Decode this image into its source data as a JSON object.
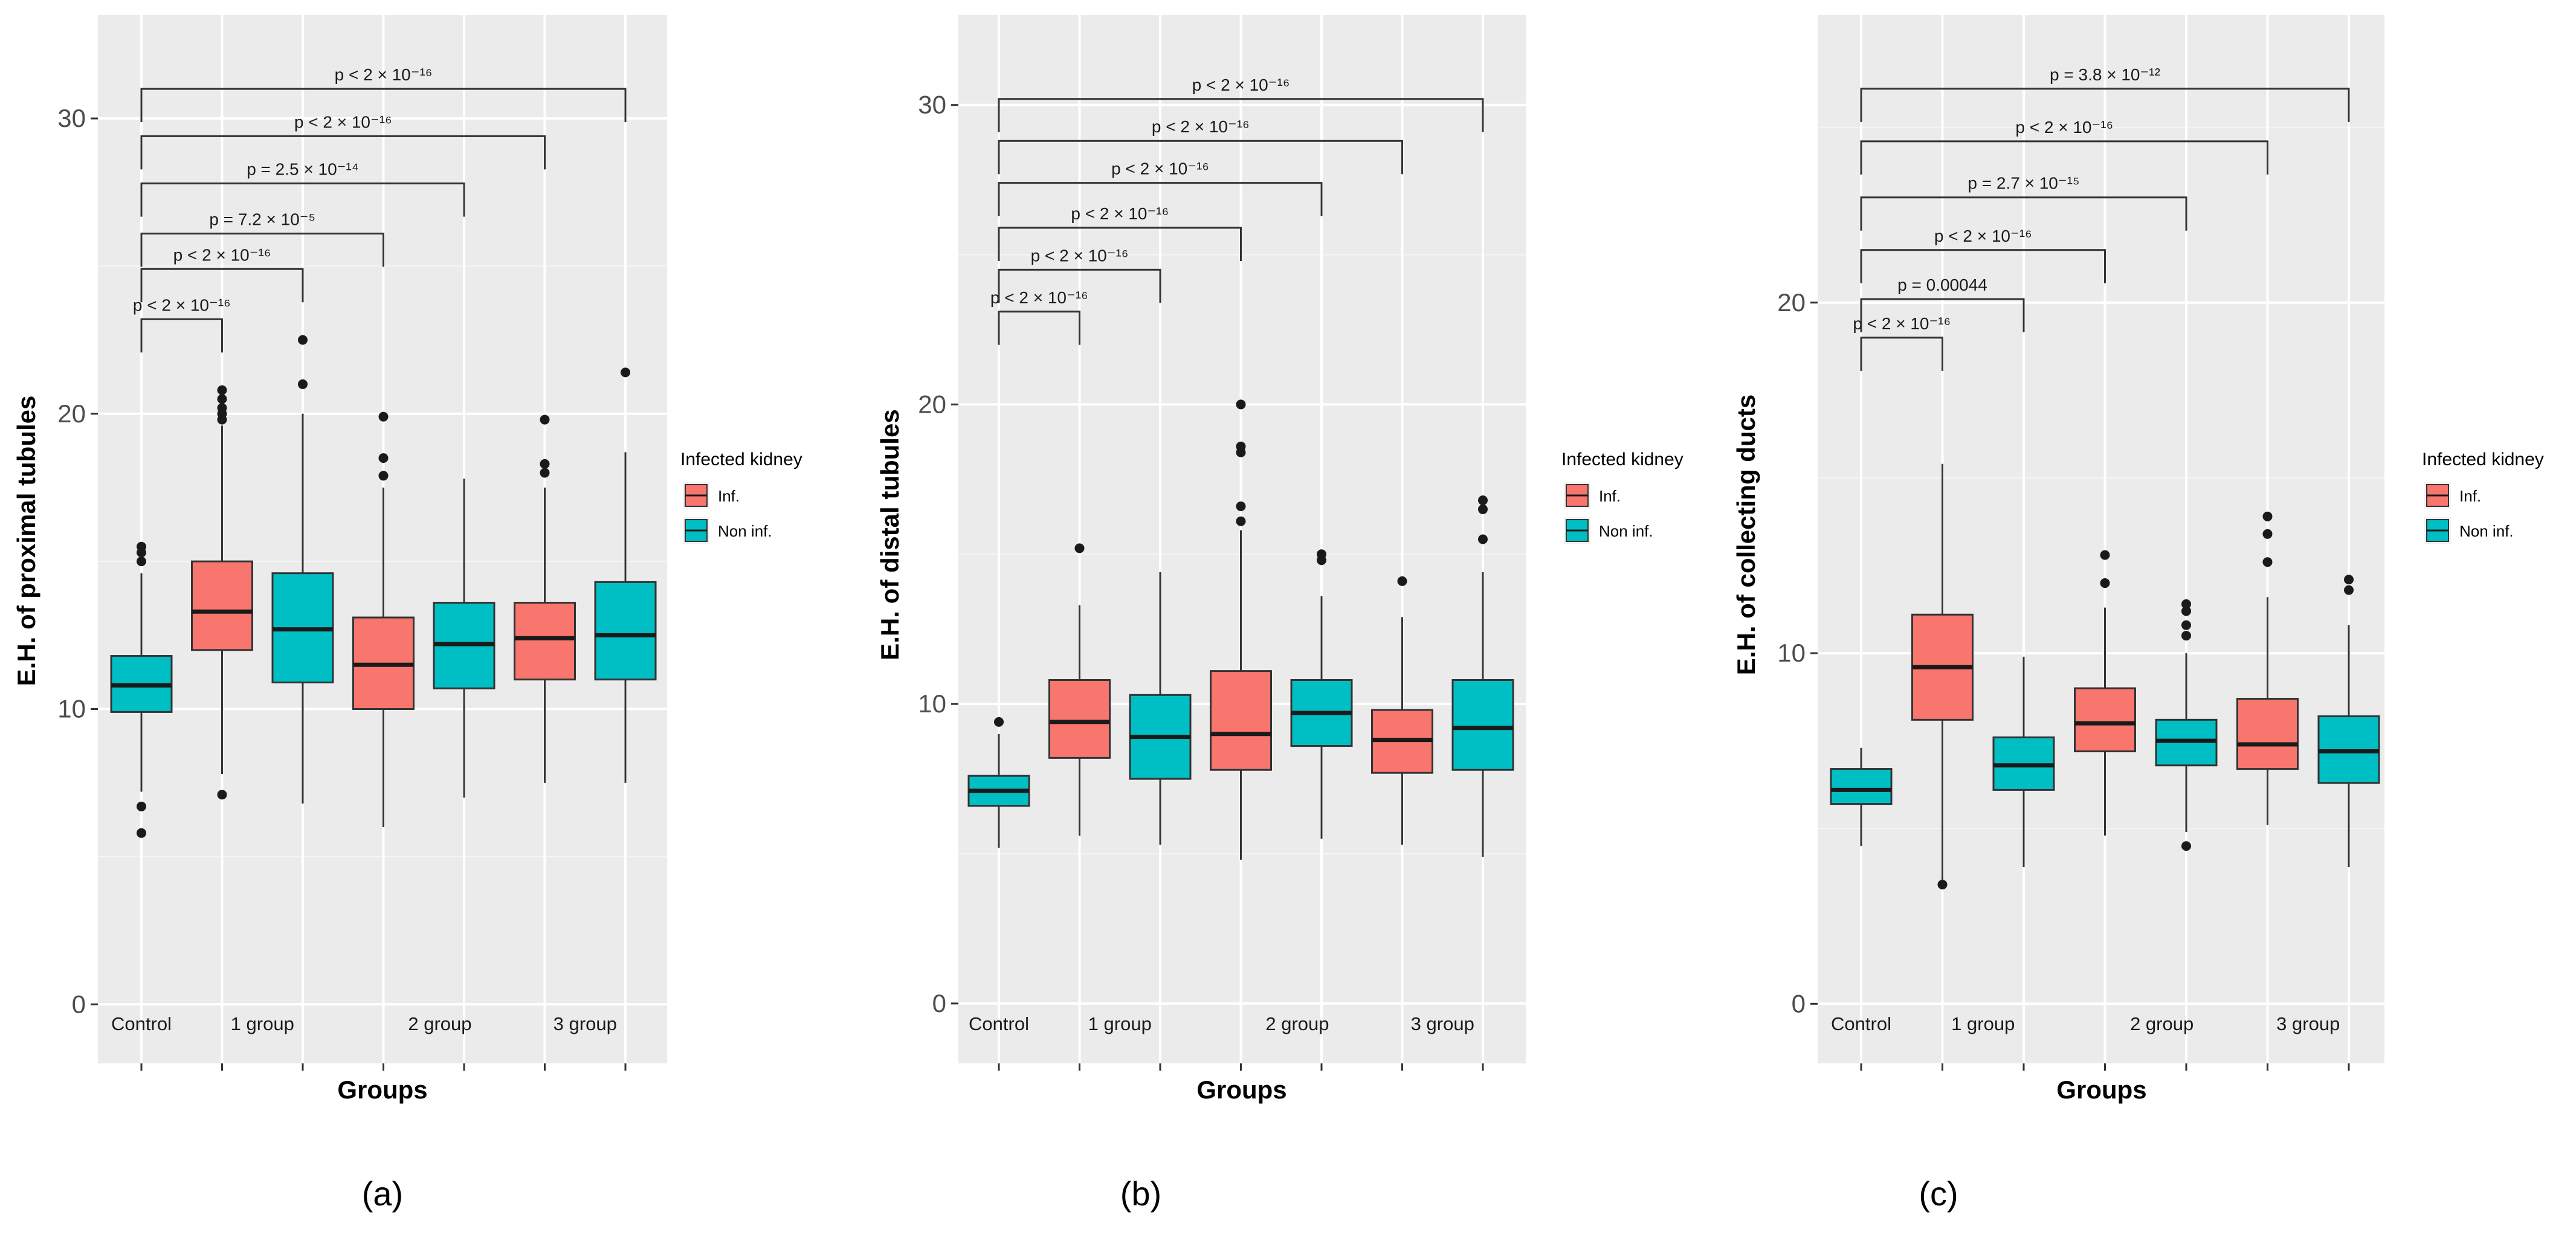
{
  "chart_data": [
    {
      "type": "box",
      "panel_label": "(a)",
      "ylabel": "E.H. of proximal tubules",
      "xlabel": "Groups",
      "ylim": [
        -2,
        33.5
      ],
      "yticks": [
        0,
        10,
        20,
        30
      ],
      "group_labels": [
        {
          "label": "Control",
          "pos": 0
        },
        {
          "label": "1 group",
          "pos": 1.5
        },
        {
          "label": "2 group",
          "pos": 3.7
        },
        {
          "label": "3 group",
          "pos": 5.5
        }
      ],
      "legend": {
        "title": "Infected kidney",
        "entries": [
          {
            "label": "Inf.",
            "color": "#F8766D"
          },
          {
            "label": "Non inf.",
            "color": "#00BFC4"
          }
        ]
      },
      "boxes": [
        {
          "series": "Non inf.",
          "q1": 9.9,
          "median": 10.8,
          "q3": 11.8,
          "whisker_low": 7.2,
          "whisker_high": 14.6,
          "outliers": [
            15.5,
            15.3,
            15.0,
            6.7,
            5.8
          ]
        },
        {
          "series": "Inf.",
          "q1": 12.0,
          "median": 13.3,
          "q3": 15.0,
          "whisker_low": 7.8,
          "whisker_high": 19.6,
          "outliers": [
            20.8,
            20.5,
            20.2,
            20.0,
            19.8,
            7.1
          ]
        },
        {
          "series": "Non inf.",
          "q1": 10.9,
          "median": 12.7,
          "q3": 14.6,
          "whisker_low": 6.8,
          "whisker_high": 20.0,
          "outliers": [
            22.5,
            21.0
          ]
        },
        {
          "series": "Inf.",
          "q1": 10.0,
          "median": 11.5,
          "q3": 13.1,
          "whisker_low": 6.0,
          "whisker_high": 17.5,
          "outliers": [
            19.9,
            18.5,
            17.9
          ]
        },
        {
          "series": "Non inf.",
          "q1": 10.7,
          "median": 12.2,
          "q3": 13.6,
          "whisker_low": 7.0,
          "whisker_high": 17.8,
          "outliers": []
        },
        {
          "series": "Inf.",
          "q1": 11.0,
          "median": 12.4,
          "q3": 13.6,
          "whisker_low": 7.5,
          "whisker_high": 17.5,
          "outliers": [
            19.8,
            18.3,
            18.0
          ]
        },
        {
          "series": "Non inf.",
          "q1": 11.0,
          "median": 12.5,
          "q3": 14.3,
          "whisker_low": 7.5,
          "whisker_high": 18.7,
          "outliers": [
            21.4
          ]
        }
      ],
      "brackets": [
        {
          "to": 1,
          "y": 23.2,
          "label": "p < 2 × 10⁻¹⁶"
        },
        {
          "to": 2,
          "y": 24.9,
          "label": "p < 2 × 10⁻¹⁶"
        },
        {
          "to": 3,
          "y": 26.1,
          "label": "p = 7.2 × 10⁻⁵"
        },
        {
          "to": 4,
          "y": 27.8,
          "label": "p = 2.5 × 10⁻¹⁴"
        },
        {
          "to": 5,
          "y": 29.4,
          "label": "p < 2 × 10⁻¹⁶"
        },
        {
          "to": 6,
          "y": 31.0,
          "label": "p < 2 × 10⁻¹⁶"
        }
      ]
    },
    {
      "type": "box",
      "panel_label": "(b)",
      "ylabel": "E.H. of distal tubules",
      "xlabel": "Groups",
      "ylim": [
        -2,
        33
      ],
      "yticks": [
        0,
        10,
        20,
        30
      ],
      "group_labels": [
        {
          "label": "Control",
          "pos": 0
        },
        {
          "label": "1 group",
          "pos": 1.5
        },
        {
          "label": "2 group",
          "pos": 3.7
        },
        {
          "label": "3 group",
          "pos": 5.5
        }
      ],
      "legend": {
        "title": "Infected kidney",
        "entries": [
          {
            "label": "Inf.",
            "color": "#F8766D"
          },
          {
            "label": "Non inf.",
            "color": "#00BFC4"
          }
        ]
      },
      "boxes": [
        {
          "series": "Non inf.",
          "q1": 6.6,
          "median": 7.1,
          "q3": 7.6,
          "whisker_low": 5.2,
          "whisker_high": 9.0,
          "outliers": [
            9.4
          ]
        },
        {
          "series": "Inf.",
          "q1": 8.2,
          "median": 9.4,
          "q3": 10.8,
          "whisker_low": 5.6,
          "whisker_high": 13.3,
          "outliers": [
            15.2
          ]
        },
        {
          "series": "Non inf.",
          "q1": 7.5,
          "median": 8.9,
          "q3": 10.3,
          "whisker_low": 5.3,
          "whisker_high": 14.4,
          "outliers": []
        },
        {
          "series": "Inf.",
          "q1": 7.8,
          "median": 9.0,
          "q3": 11.1,
          "whisker_low": 4.8,
          "whisker_high": 15.8,
          "outliers": [
            20.0,
            18.6,
            18.4,
            16.6,
            16.1
          ]
        },
        {
          "series": "Non inf.",
          "q1": 8.6,
          "median": 9.7,
          "q3": 10.8,
          "whisker_low": 5.5,
          "whisker_high": 13.6,
          "outliers": [
            15.0,
            14.8
          ]
        },
        {
          "series": "Inf.",
          "q1": 7.7,
          "median": 8.8,
          "q3": 9.8,
          "whisker_low": 5.3,
          "whisker_high": 12.9,
          "outliers": [
            14.1
          ]
        },
        {
          "series": "Non inf.",
          "q1": 7.8,
          "median": 9.2,
          "q3": 10.8,
          "whisker_low": 4.9,
          "whisker_high": 14.4,
          "outliers": [
            16.8,
            16.5,
            15.5
          ]
        }
      ],
      "brackets": [
        {
          "to": 1,
          "y": 23.1,
          "label": "p < 2 × 10⁻¹⁶"
        },
        {
          "to": 2,
          "y": 24.5,
          "label": "p < 2 × 10⁻¹⁶"
        },
        {
          "to": 3,
          "y": 25.9,
          "label": "p < 2 × 10⁻¹⁶"
        },
        {
          "to": 4,
          "y": 27.4,
          "label": "p < 2 × 10⁻¹⁶"
        },
        {
          "to": 5,
          "y": 28.8,
          "label": "p < 2 × 10⁻¹⁶"
        },
        {
          "to": 6,
          "y": 30.2,
          "label": "p < 2 × 10⁻¹⁶"
        }
      ]
    },
    {
      "type": "box",
      "panel_label": "(c)",
      "ylabel": "E.H. of collecting ducts",
      "xlabel": "Groups",
      "ylim": [
        -1.7,
        28.2
      ],
      "yticks": [
        0,
        10,
        20
      ],
      "group_labels": [
        {
          "label": "Control",
          "pos": 0
        },
        {
          "label": "1 group",
          "pos": 1.5
        },
        {
          "label": "2 group",
          "pos": 3.7
        },
        {
          "label": "3 group",
          "pos": 5.5
        }
      ],
      "legend": {
        "title": "Infected kidney",
        "entries": [
          {
            "label": "Inf.",
            "color": "#F8766D"
          },
          {
            "label": "Non inf.",
            "color": "#00BFC4"
          }
        ]
      },
      "boxes": [
        {
          "series": "Non inf.",
          "q1": 5.7,
          "median": 6.1,
          "q3": 6.7,
          "whisker_low": 4.5,
          "whisker_high": 7.3,
          "outliers": []
        },
        {
          "series": "Inf.",
          "q1": 8.1,
          "median": 9.6,
          "q3": 11.1,
          "whisker_low": 3.5,
          "whisker_high": 15.4,
          "outliers": [
            3.4
          ]
        },
        {
          "series": "Non inf.",
          "q1": 6.1,
          "median": 6.8,
          "q3": 7.6,
          "whisker_low": 3.9,
          "whisker_high": 9.9,
          "outliers": []
        },
        {
          "series": "Inf.",
          "q1": 7.2,
          "median": 8.0,
          "q3": 9.0,
          "whisker_low": 4.8,
          "whisker_high": 11.3,
          "outliers": [
            12.8,
            12.0
          ]
        },
        {
          "series": "Non inf.",
          "q1": 6.8,
          "median": 7.5,
          "q3": 8.1,
          "whisker_low": 4.9,
          "whisker_high": 10.0,
          "outliers": [
            11.4,
            11.2,
            10.8,
            10.5,
            4.5
          ]
        },
        {
          "series": "Inf.",
          "q1": 6.7,
          "median": 7.4,
          "q3": 8.7,
          "whisker_low": 5.1,
          "whisker_high": 11.6,
          "outliers": [
            13.9,
            13.4,
            12.6
          ]
        },
        {
          "series": "Non inf.",
          "q1": 6.3,
          "median": 7.2,
          "q3": 8.2,
          "whisker_low": 3.9,
          "whisker_high": 10.8,
          "outliers": [
            12.1,
            11.8
          ]
        }
      ],
      "brackets": [
        {
          "to": 1,
          "y": 19.0,
          "label": "p < 2 × 10⁻¹⁶"
        },
        {
          "to": 2,
          "y": 20.1,
          "label": "p = 0.00044"
        },
        {
          "to": 3,
          "y": 21.5,
          "label": "p < 2 × 10⁻¹⁶"
        },
        {
          "to": 4,
          "y": 23.0,
          "label": "p = 2.7 × 10⁻¹⁵"
        },
        {
          "to": 5,
          "y": 24.6,
          "label": "p < 2 × 10⁻¹⁶"
        },
        {
          "to": 6,
          "y": 26.1,
          "label": "p = 3.8 × 10⁻¹²"
        }
      ]
    }
  ]
}
